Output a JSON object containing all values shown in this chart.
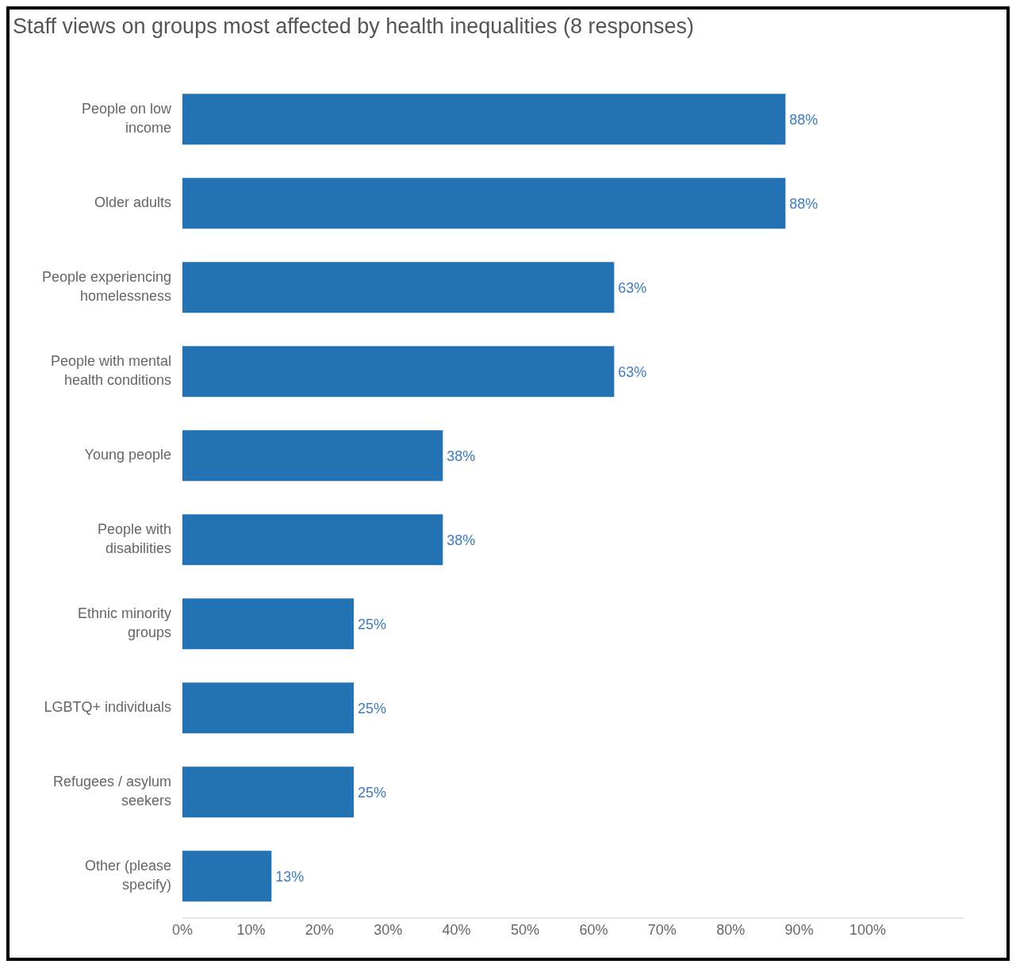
{
  "chart_data": {
    "type": "bar",
    "orientation": "horizontal",
    "title": "Staff views on groups most affected by health inequalities (8 responses)",
    "categories": [
      "People on low income",
      "Older adults",
      "People experiencing homelessness",
      "People with mental health conditions",
      "Young people",
      "People with disabilities",
      "Ethnic minority groups",
      "LGBTQ+ individuals",
      "Refugees / asylum seekers",
      "Other (please specify)"
    ],
    "values": [
      88,
      88,
      63,
      63,
      38,
      38,
      25,
      25,
      25,
      13
    ],
    "value_labels": [
      "88%",
      "88%",
      "63%",
      "63%",
      "38%",
      "38%",
      "25%",
      "25%",
      "25%",
      "13%"
    ],
    "color": "#2272b4",
    "xlim": [
      0,
      114
    ],
    "xticks": [
      {
        "value": 0,
        "label": "0%"
      },
      {
        "value": 10,
        "label": "10%"
      },
      {
        "value": 20,
        "label": "20%"
      },
      {
        "value": 30,
        "label": "30%"
      },
      {
        "value": 40,
        "label": "40%"
      },
      {
        "value": 50,
        "label": "50%"
      },
      {
        "value": 60,
        "label": "60%"
      },
      {
        "value": 70,
        "label": "70%"
      },
      {
        "value": 80,
        "label": "80%"
      },
      {
        "value": 90,
        "label": "90%"
      },
      {
        "value": 100,
        "label": "100%"
      }
    ],
    "grid": false,
    "legend": false
  }
}
